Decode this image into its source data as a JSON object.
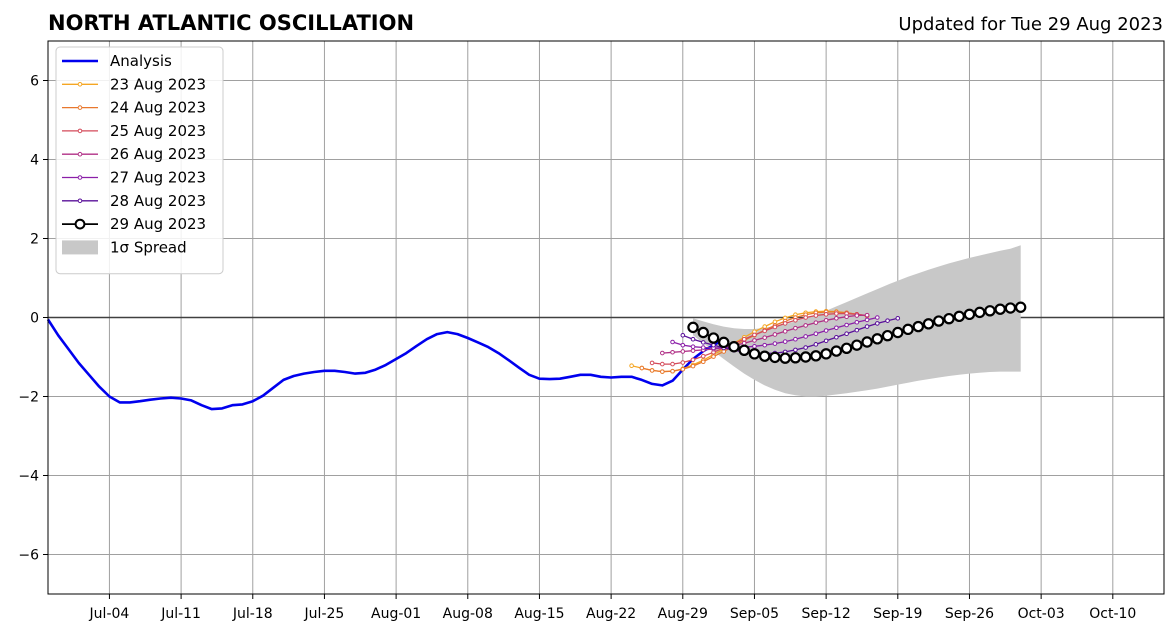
{
  "chart_data": {
    "type": "line",
    "title": "NORTH ATLANTIC OSCILLATION",
    "subtitle": "Updated for Tue 29 Aug 2023",
    "xlabel": "",
    "ylabel": "",
    "xlim": [
      "2023-06-28",
      "2023-10-15"
    ],
    "ylim": [
      -7,
      7
    ],
    "grid": true,
    "legend_position": "top-left",
    "x_ticks": [
      {
        "date": "2023-07-04",
        "label": "Jul-04"
      },
      {
        "date": "2023-07-11",
        "label": "Jul-11"
      },
      {
        "date": "2023-07-18",
        "label": "Jul-18"
      },
      {
        "date": "2023-07-25",
        "label": "Jul-25"
      },
      {
        "date": "2023-08-01",
        "label": "Aug-01"
      },
      {
        "date": "2023-08-08",
        "label": "Aug-08"
      },
      {
        "date": "2023-08-15",
        "label": "Aug-15"
      },
      {
        "date": "2023-08-22",
        "label": "Aug-22"
      },
      {
        "date": "2023-08-29",
        "label": "Aug-29"
      },
      {
        "date": "2023-09-05",
        "label": "Sep-05"
      },
      {
        "date": "2023-09-12",
        "label": "Sep-12"
      },
      {
        "date": "2023-09-19",
        "label": "Sep-19"
      },
      {
        "date": "2023-09-26",
        "label": "Sep-26"
      },
      {
        "date": "2023-10-03",
        "label": "Oct-03"
      },
      {
        "date": "2023-10-10",
        "label": "Oct-10"
      }
    ],
    "y_ticks": [
      {
        "value": -6,
        "label": "−6"
      },
      {
        "value": -4,
        "label": "−4"
      },
      {
        "value": -2,
        "label": "−2"
      },
      {
        "value": 0,
        "label": "0"
      },
      {
        "value": 2,
        "label": "2"
      },
      {
        "value": 4,
        "label": "4"
      },
      {
        "value": 6,
        "label": "6"
      }
    ],
    "analysis": {
      "name": "Analysis",
      "color": "#0000ee",
      "start": "2023-06-28",
      "values": [
        -0.05,
        -0.45,
        -0.8,
        -1.15,
        -1.45,
        -1.75,
        -2.0,
        -2.15,
        -2.15,
        -2.12,
        -2.08,
        -2.05,
        -2.03,
        -2.05,
        -2.1,
        -2.22,
        -2.32,
        -2.3,
        -2.22,
        -2.2,
        -2.12,
        -1.98,
        -1.78,
        -1.58,
        -1.48,
        -1.42,
        -1.38,
        -1.35,
        -1.35,
        -1.38,
        -1.42,
        -1.4,
        -1.32,
        -1.2,
        -1.05,
        -0.9,
        -0.72,
        -0.55,
        -0.42,
        -0.37,
        -0.42,
        -0.52,
        -0.63,
        -0.75,
        -0.9,
        -1.08,
        -1.27,
        -1.45,
        -1.55,
        -1.56,
        -1.55,
        -1.5,
        -1.45,
        -1.45,
        -1.5,
        -1.52,
        -1.5,
        -1.5,
        -1.58,
        -1.68,
        -1.72,
        -1.6,
        -1.32,
        -1.05,
        -0.85,
        -0.7,
        -0.55
      ]
    },
    "forecasts": [
      {
        "name": "23 Aug 2023",
        "color": "#f5a623",
        "start": "2023-08-24",
        "values": [
          -1.22,
          -1.28,
          -1.34,
          -1.37,
          -1.36,
          -1.3,
          -1.2,
          -1.08,
          -0.94,
          -0.8,
          -0.65,
          -0.5,
          -0.36,
          -0.23,
          -0.11,
          -0.01,
          0.07,
          0.12,
          0.15,
          0.16,
          0.15,
          0.12,
          0.08,
          0.04
        ]
      },
      {
        "name": "24 Aug 2023",
        "color": "#e8782e",
        "start": "2023-08-25",
        "values": [
          -1.28,
          -1.34,
          -1.37,
          -1.36,
          -1.31,
          -1.23,
          -1.12,
          -0.99,
          -0.86,
          -0.72,
          -0.58,
          -0.45,
          -0.32,
          -0.2,
          -0.09,
          0.0,
          0.07,
          0.12,
          0.14,
          0.14,
          0.12,
          0.08,
          0.04
        ]
      },
      {
        "name": "25 Aug 2023",
        "color": "#d44a5a",
        "start": "2023-08-26",
        "values": [
          -1.15,
          -1.18,
          -1.18,
          -1.14,
          -1.07,
          -0.98,
          -0.88,
          -0.77,
          -0.66,
          -0.55,
          -0.44,
          -0.34,
          -0.24,
          -0.15,
          -0.07,
          0.0,
          0.05,
          0.08,
          0.1,
          0.1,
          0.08,
          0.05
        ]
      },
      {
        "name": "26 Aug 2023",
        "color": "#b02f86",
        "start": "2023-08-27",
        "values": [
          -0.9,
          -0.88,
          -0.86,
          -0.84,
          -0.82,
          -0.8,
          -0.76,
          -0.71,
          -0.65,
          -0.58,
          -0.51,
          -0.43,
          -0.35,
          -0.27,
          -0.2,
          -0.13,
          -0.07,
          -0.02,
          0.02,
          0.05,
          0.06
        ]
      },
      {
        "name": "27 Aug 2023",
        "color": "#8b1fa8",
        "start": "2023-08-28",
        "values": [
          -0.62,
          -0.7,
          -0.74,
          -0.76,
          -0.77,
          -0.77,
          -0.76,
          -0.75,
          -0.73,
          -0.7,
          -0.66,
          -0.61,
          -0.55,
          -0.48,
          -0.41,
          -0.33,
          -0.26,
          -0.19,
          -0.12,
          -0.06,
          0.0
        ]
      },
      {
        "name": "28 Aug 2023",
        "color": "#5a109a",
        "start": "2023-08-29",
        "values": [
          -0.45,
          -0.55,
          -0.63,
          -0.7,
          -0.77,
          -0.83,
          -0.87,
          -0.9,
          -0.91,
          -0.9,
          -0.87,
          -0.82,
          -0.76,
          -0.68,
          -0.59,
          -0.5,
          -0.41,
          -0.32,
          -0.23,
          -0.15,
          -0.08,
          -0.02
        ]
      },
      {
        "name": "29 Aug 2023",
        "color": "#000000",
        "start": "2023-08-30",
        "markers": "open-circle",
        "values": [
          -0.25,
          -0.38,
          -0.52,
          -0.63,
          -0.74,
          -0.83,
          -0.92,
          -0.98,
          -1.01,
          -1.03,
          -1.02,
          -1.0,
          -0.97,
          -0.92,
          -0.85,
          -0.78,
          -0.7,
          -0.62,
          -0.54,
          -0.46,
          -0.38,
          -0.3,
          -0.23,
          -0.16,
          -0.09,
          -0.03,
          0.03,
          0.08,
          0.13,
          0.17,
          0.21,
          0.24,
          0.26
        ]
      }
    ],
    "spread": {
      "name": "1σ Spread",
      "color": "#c8c8c8",
      "start": "2023-08-30",
      "upper": [
        -0.02,
        -0.1,
        -0.17,
        -0.23,
        -0.27,
        -0.29,
        -0.29,
        -0.26,
        -0.22,
        -0.17,
        -0.1,
        -0.02,
        0.07,
        0.17,
        0.28,
        0.39,
        0.5,
        0.61,
        0.72,
        0.83,
        0.93,
        1.03,
        1.12,
        1.21,
        1.29,
        1.37,
        1.44,
        1.51,
        1.57,
        1.63,
        1.69,
        1.74,
        1.83
      ],
      "lower": [
        -0.45,
        -0.65,
        -0.85,
        -1.05,
        -1.24,
        -1.42,
        -1.58,
        -1.72,
        -1.83,
        -1.92,
        -1.97,
        -2.0,
        -2.0,
        -1.98,
        -1.95,
        -1.92,
        -1.88,
        -1.84,
        -1.8,
        -1.75,
        -1.7,
        -1.65,
        -1.6,
        -1.56,
        -1.52,
        -1.48,
        -1.45,
        -1.42,
        -1.4,
        -1.38,
        -1.37,
        -1.37,
        -1.37
      ]
    }
  }
}
